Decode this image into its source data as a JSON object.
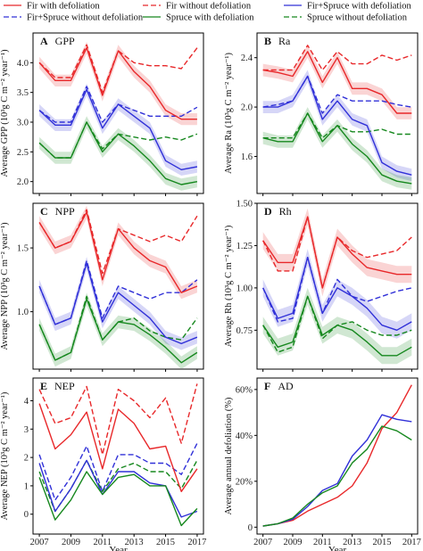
{
  "legend": [
    {
      "label": "Fir with defoliation",
      "color": "#e8282a",
      "dash": false
    },
    {
      "label": "Fir without defoliation",
      "color": "#e8282a",
      "dash": true
    },
    {
      "label": "Fir+Spruce with defoliation",
      "color": "#3030d8",
      "dash": false
    },
    {
      "label": "Fir+Spruce without defoliation",
      "color": "#3030d8",
      "dash": true
    },
    {
      "label": "Spruce with defoliation",
      "color": "#16881e",
      "dash": false
    },
    {
      "label": "Spruce without defoliation",
      "color": "#16881e",
      "dash": true
    }
  ],
  "x_axis_label": "Year",
  "chart_data": [
    {
      "type": "line",
      "letter": "A",
      "title": "GPP",
      "ylabel": "Average GPP (10³g C m⁻² year⁻¹)",
      "x": [
        2007,
        2008,
        2009,
        2010,
        2011,
        2012,
        2013,
        2014,
        2015,
        2016,
        2017
      ],
      "xticks": [
        2007,
        2009,
        2011,
        2013,
        2015,
        2017
      ],
      "ylim": [
        1.8,
        4.5
      ],
      "yticks": [
        2.0,
        2.5,
        3.0,
        3.5,
        4.0
      ],
      "ytick_labels": [
        "2.0",
        "2.5",
        "3.0",
        "3.5",
        "4.0"
      ],
      "band": 0.1,
      "series": [
        {
          "legend": 0,
          "values": [
            4.0,
            3.7,
            3.7,
            4.25,
            3.45,
            4.2,
            3.85,
            3.6,
            3.2,
            3.05,
            3.05
          ]
        },
        {
          "legend": 1,
          "values": [
            4.0,
            3.75,
            3.75,
            4.3,
            3.5,
            4.2,
            4.0,
            3.95,
            3.95,
            3.9,
            4.25
          ]
        },
        {
          "legend": 2,
          "values": [
            3.2,
            2.95,
            2.95,
            3.55,
            2.9,
            3.3,
            3.1,
            2.9,
            2.35,
            2.2,
            2.25
          ]
        },
        {
          "legend": 3,
          "values": [
            3.2,
            3.0,
            3.0,
            3.6,
            3.0,
            3.3,
            3.2,
            3.1,
            3.1,
            3.1,
            3.25
          ]
        },
        {
          "legend": 4,
          "values": [
            2.65,
            2.4,
            2.4,
            3.0,
            2.5,
            2.8,
            2.6,
            2.35,
            2.05,
            1.95,
            2.0
          ]
        },
        {
          "legend": 5,
          "values": [
            2.65,
            2.4,
            2.4,
            3.0,
            2.55,
            2.8,
            2.75,
            2.7,
            2.75,
            2.7,
            2.8
          ]
        }
      ]
    },
    {
      "type": "line",
      "letter": "B",
      "title": "Ra",
      "ylabel": "Average Ra (10³g C m⁻² year⁻¹)",
      "x": [
        2007,
        2008,
        2009,
        2010,
        2011,
        2012,
        2013,
        2014,
        2015,
        2016,
        2017
      ],
      "xticks": [
        2007,
        2009,
        2011,
        2013,
        2015,
        2017
      ],
      "ylim": [
        1.3,
        2.6
      ],
      "yticks": [
        1.6,
        2.0,
        2.4
      ],
      "ytick_labels": [
        "1.6",
        "2.0",
        "2.4"
      ],
      "band": 0.05,
      "series": [
        {
          "legend": 0,
          "values": [
            2.3,
            2.28,
            2.25,
            2.45,
            2.2,
            2.4,
            2.15,
            2.15,
            2.1,
            1.95,
            1.95
          ]
        },
        {
          "legend": 1,
          "values": [
            2.3,
            2.3,
            2.3,
            2.5,
            2.3,
            2.45,
            2.35,
            2.35,
            2.42,
            2.38,
            2.42
          ]
        },
        {
          "legend": 2,
          "values": [
            2.0,
            2.0,
            2.05,
            2.25,
            1.9,
            2.05,
            1.9,
            1.85,
            1.55,
            1.48,
            1.45
          ]
        },
        {
          "legend": 3,
          "values": [
            2.0,
            2.02,
            2.05,
            2.25,
            1.95,
            2.1,
            2.05,
            2.05,
            2.05,
            2.02,
            2.0
          ]
        },
        {
          "legend": 4,
          "values": [
            1.75,
            1.72,
            1.72,
            1.95,
            1.72,
            1.85,
            1.7,
            1.6,
            1.45,
            1.4,
            1.38
          ]
        },
        {
          "legend": 5,
          "values": [
            1.75,
            1.75,
            1.75,
            1.95,
            1.75,
            1.85,
            1.8,
            1.8,
            1.82,
            1.78,
            1.78
          ]
        }
      ]
    },
    {
      "type": "line",
      "letter": "C",
      "title": "NPP",
      "ylabel": "Average NPP (10³g C m⁻² year⁻¹)",
      "x": [
        2007,
        2008,
        2009,
        2010,
        2011,
        2012,
        2013,
        2014,
        2015,
        2016,
        2017
      ],
      "xticks": [
        2007,
        2009,
        2011,
        2013,
        2015,
        2017
      ],
      "ylim": [
        0.55,
        1.85
      ],
      "yticks": [
        1.0,
        1.5
      ],
      "ytick_labels": [
        "1.0",
        "1.5"
      ],
      "band": 0.05,
      "series": [
        {
          "legend": 0,
          "values": [
            1.7,
            1.5,
            1.55,
            1.78,
            1.25,
            1.65,
            1.5,
            1.4,
            1.35,
            1.15,
            1.2
          ]
        },
        {
          "legend": 1,
          "values": [
            1.7,
            1.5,
            1.55,
            1.8,
            1.3,
            1.65,
            1.6,
            1.55,
            1.6,
            1.55,
            1.75
          ]
        },
        {
          "legend": 2,
          "values": [
            1.2,
            0.9,
            0.95,
            1.38,
            0.92,
            1.15,
            1.05,
            0.95,
            0.8,
            0.75,
            0.8
          ]
        },
        {
          "legend": 3,
          "values": [
            1.2,
            0.9,
            0.95,
            1.4,
            0.95,
            1.2,
            1.15,
            1.1,
            1.15,
            1.15,
            1.25
          ]
        },
        {
          "legend": 4,
          "values": [
            0.9,
            0.62,
            0.68,
            1.1,
            0.78,
            0.92,
            0.9,
            0.82,
            0.72,
            0.6,
            0.68
          ]
        },
        {
          "legend": 5,
          "values": [
            0.9,
            0.62,
            0.68,
            1.12,
            0.78,
            0.92,
            0.95,
            0.85,
            0.8,
            0.78,
            0.95
          ]
        }
      ]
    },
    {
      "type": "line",
      "letter": "D",
      "title": "Rh",
      "ylabel": "Average Rh (10³g C m⁻² year⁻¹)",
      "x": [
        2007,
        2008,
        2009,
        2010,
        2011,
        2012,
        2013,
        2014,
        2015,
        2016,
        2017
      ],
      "xticks": [
        2007,
        2009,
        2011,
        2013,
        2015,
        2017
      ],
      "ylim": [
        0.52,
        1.5
      ],
      "yticks": [
        0.75,
        1.0,
        1.25,
        1.5
      ],
      "ytick_labels": [
        "0.75",
        "1.00",
        "1.25",
        "1.50"
      ],
      "band": 0.05,
      "series": [
        {
          "legend": 0,
          "values": [
            1.28,
            1.15,
            1.15,
            1.42,
            1.0,
            1.3,
            1.2,
            1.12,
            1.1,
            1.08,
            1.08
          ]
        },
        {
          "legend": 1,
          "values": [
            1.28,
            1.1,
            1.1,
            1.42,
            1.0,
            1.3,
            1.22,
            1.18,
            1.2,
            1.22,
            1.3
          ]
        },
        {
          "legend": 2,
          "values": [
            1.0,
            0.82,
            0.85,
            1.18,
            0.85,
            1.0,
            0.95,
            0.88,
            0.78,
            0.75,
            0.8
          ]
        },
        {
          "legend": 3,
          "values": [
            1.0,
            0.8,
            0.82,
            1.18,
            0.85,
            1.05,
            0.95,
            0.92,
            0.95,
            0.98,
            1.0
          ]
        },
        {
          "legend": 4,
          "values": [
            0.78,
            0.65,
            0.68,
            0.95,
            0.72,
            0.78,
            0.75,
            0.68,
            0.6,
            0.6,
            0.65
          ]
        },
        {
          "legend": 5,
          "values": [
            0.78,
            0.62,
            0.65,
            0.95,
            0.7,
            0.78,
            0.8,
            0.75,
            0.72,
            0.72,
            0.75
          ]
        }
      ]
    },
    {
      "type": "line",
      "letter": "E",
      "title": "NEP",
      "ylabel": "Average NEP (10³g C m⁻² year⁻¹)",
      "x": [
        2007,
        2008,
        2009,
        2010,
        2011,
        2012,
        2013,
        2014,
        2015,
        2016,
        2017
      ],
      "xticks": [
        2007,
        2009,
        2011,
        2013,
        2015,
        2017
      ],
      "ylim": [
        -0.7,
        4.8
      ],
      "yticks": [
        0,
        1,
        2,
        3,
        4
      ],
      "ytick_labels": [
        "0",
        "1",
        "2",
        "3",
        "4"
      ],
      "band": 0,
      "series": [
        {
          "legend": 0,
          "values": [
            3.9,
            2.3,
            2.8,
            3.6,
            1.6,
            3.7,
            3.2,
            2.3,
            2.4,
            0.8,
            1.6
          ]
        },
        {
          "legend": 1,
          "values": [
            4.4,
            3.2,
            3.4,
            4.5,
            2.1,
            4.4,
            4.0,
            3.4,
            4.1,
            2.5,
            4.6
          ]
        },
        {
          "legend": 2,
          "values": [
            1.8,
            0.1,
            0.9,
            1.9,
            0.7,
            1.5,
            1.5,
            1.1,
            1.0,
            -0.1,
            0.1
          ]
        },
        {
          "legend": 3,
          "values": [
            2.1,
            0.5,
            1.3,
            2.4,
            0.8,
            2.1,
            2.1,
            1.8,
            1.8,
            1.4,
            2.5
          ]
        },
        {
          "legend": 4,
          "values": [
            1.3,
            -0.2,
            0.5,
            1.5,
            0.7,
            1.3,
            1.4,
            1.0,
            1.0,
            -0.4,
            0.2
          ]
        },
        {
          "legend": 5,
          "values": [
            1.5,
            0.1,
            0.9,
            1.9,
            0.8,
            1.6,
            1.8,
            1.5,
            1.5,
            0.9,
            1.9
          ]
        }
      ]
    },
    {
      "type": "line",
      "letter": "F",
      "title": "AD",
      "ylabel": "Average annual defoliation (%)",
      "x": [
        2007,
        2008,
        2009,
        2010,
        2011,
        2012,
        2013,
        2014,
        2015,
        2016,
        2017
      ],
      "xticks": [
        2007,
        2009,
        2011,
        2013,
        2015,
        2017
      ],
      "ylim": [
        -3,
        65
      ],
      "yticks": [
        0,
        20,
        40,
        60
      ],
      "ytick_labels": [
        "0",
        "20%",
        "40%",
        "60%"
      ],
      "band": 0,
      "series": [
        {
          "legend": 0,
          "values": [
            0.5,
            1.5,
            3,
            7,
            10,
            13,
            18,
            28,
            43,
            50,
            62
          ]
        },
        {
          "legend": 2,
          "values": [
            0.5,
            1.5,
            3.5,
            9,
            16,
            19,
            31,
            38,
            49,
            47,
            46
          ]
        },
        {
          "legend": 4,
          "values": [
            0.5,
            1.5,
            4,
            10,
            15,
            18,
            28,
            34,
            44,
            42,
            38
          ]
        }
      ]
    }
  ]
}
